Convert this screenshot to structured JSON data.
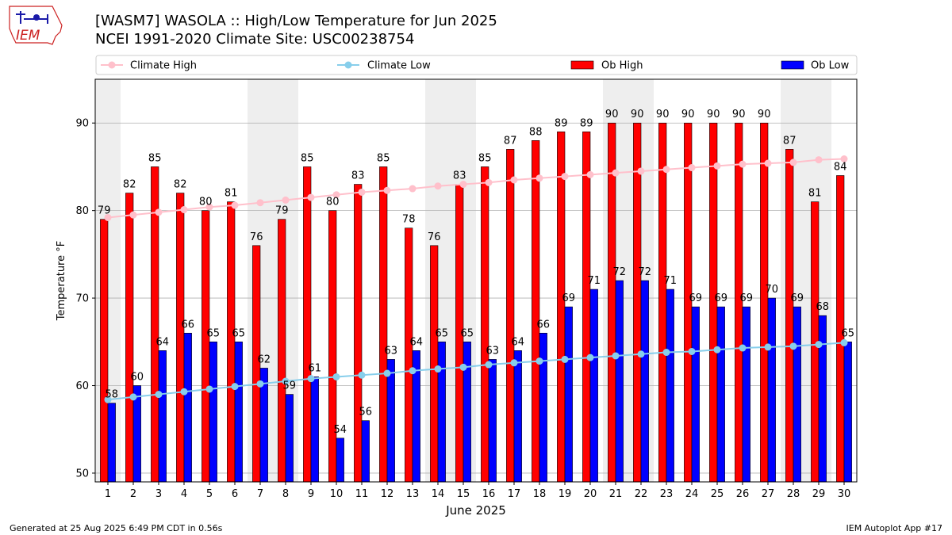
{
  "header": {
    "title_line1": "[WASM7] WASOLA :: High/Low Temperature for Jun 2025",
    "title_line2": "NCEI 1991-2020 Climate Site: USC00238754",
    "logo_text": "IEM"
  },
  "footer": {
    "left": "Generated at 25 Aug 2025 6:49 PM CDT in 0.56s",
    "right": "IEM Autoplot App #17"
  },
  "colors": {
    "ob_high": "#ff0000",
    "ob_low": "#0000ff",
    "climate_high": "#ffc0cb",
    "climate_low": "#87ceeb",
    "weekend_shade": "#eeeeee",
    "grid": "#b0b0b0",
    "logo": "#cc2222"
  },
  "chart_data": {
    "type": "bar",
    "xlabel": "June 2025",
    "ylabel": "Temperature °F",
    "ylim": [
      49,
      95
    ],
    "yticks": [
      50,
      60,
      70,
      80,
      90
    ],
    "grid": true,
    "legend_position": "top",
    "categories": [
      "1",
      "2",
      "3",
      "4",
      "5",
      "6",
      "7",
      "8",
      "9",
      "10",
      "11",
      "12",
      "13",
      "14",
      "15",
      "16",
      "17",
      "18",
      "19",
      "20",
      "21",
      "22",
      "23",
      "24",
      "25",
      "26",
      "27",
      "28",
      "29",
      "30"
    ],
    "shaded_days": [
      1,
      7,
      8,
      14,
      15,
      21,
      22,
      28,
      29
    ],
    "series": [
      {
        "name": "Ob High",
        "kind": "bar",
        "values": [
          79,
          82,
          85,
          82,
          80,
          81,
          76,
          79,
          85,
          80,
          83,
          85,
          78,
          76,
          83,
          85,
          87,
          88,
          89,
          89,
          90,
          90,
          90,
          90,
          90,
          90,
          90,
          87,
          81,
          84
        ]
      },
      {
        "name": "Ob Low",
        "kind": "bar",
        "values": [
          58,
          60,
          64,
          66,
          65,
          65,
          62,
          59,
          61,
          54,
          56,
          63,
          64,
          65,
          65,
          63,
          64,
          66,
          69,
          71,
          72,
          72,
          71,
          69,
          69,
          69,
          70,
          69,
          68,
          65
        ]
      },
      {
        "name": "Climate High",
        "kind": "line",
        "values": [
          79.2,
          79.5,
          79.8,
          80.1,
          80.4,
          80.6,
          80.9,
          81.2,
          81.5,
          81.8,
          82.1,
          82.3,
          82.5,
          82.8,
          83.0,
          83.2,
          83.5,
          83.7,
          83.9,
          84.1,
          84.3,
          84.5,
          84.7,
          84.9,
          85.1,
          85.3,
          85.4,
          85.5,
          85.8,
          85.9
        ]
      },
      {
        "name": "Climate Low",
        "kind": "line",
        "values": [
          58.4,
          58.7,
          59.0,
          59.3,
          59.6,
          59.9,
          60.2,
          60.5,
          60.8,
          61.0,
          61.2,
          61.4,
          61.7,
          61.9,
          62.1,
          62.4,
          62.6,
          62.8,
          63.0,
          63.2,
          63.4,
          63.6,
          63.8,
          63.9,
          64.1,
          64.3,
          64.4,
          64.5,
          64.7,
          64.9
        ]
      }
    ],
    "legend": [
      "Climate High",
      "Climate Low",
      "Ob High",
      "Ob Low"
    ]
  }
}
